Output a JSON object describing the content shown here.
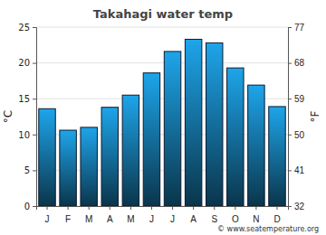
{
  "chart_data": {
    "type": "bar",
    "title": "Takahagi water temp",
    "categories": [
      "J",
      "F",
      "M",
      "A",
      "M",
      "J",
      "J",
      "A",
      "S",
      "O",
      "N",
      "D"
    ],
    "values": [
      13.6,
      10.6,
      11.0,
      13.8,
      15.5,
      18.6,
      21.6,
      23.3,
      22.8,
      19.3,
      16.9,
      13.9
    ],
    "color": "#1ea5ea",
    "ylabel": "°C",
    "y2label": "°F",
    "ylim": [
      0,
      25
    ],
    "yticks": [
      0,
      5,
      10,
      15,
      20,
      25
    ],
    "y2lim": [
      32,
      77
    ],
    "y2ticks": [
      32,
      41,
      50,
      59,
      68,
      77
    ],
    "grid": true,
    "annotations": [
      "© www.seatemperature.org"
    ]
  }
}
